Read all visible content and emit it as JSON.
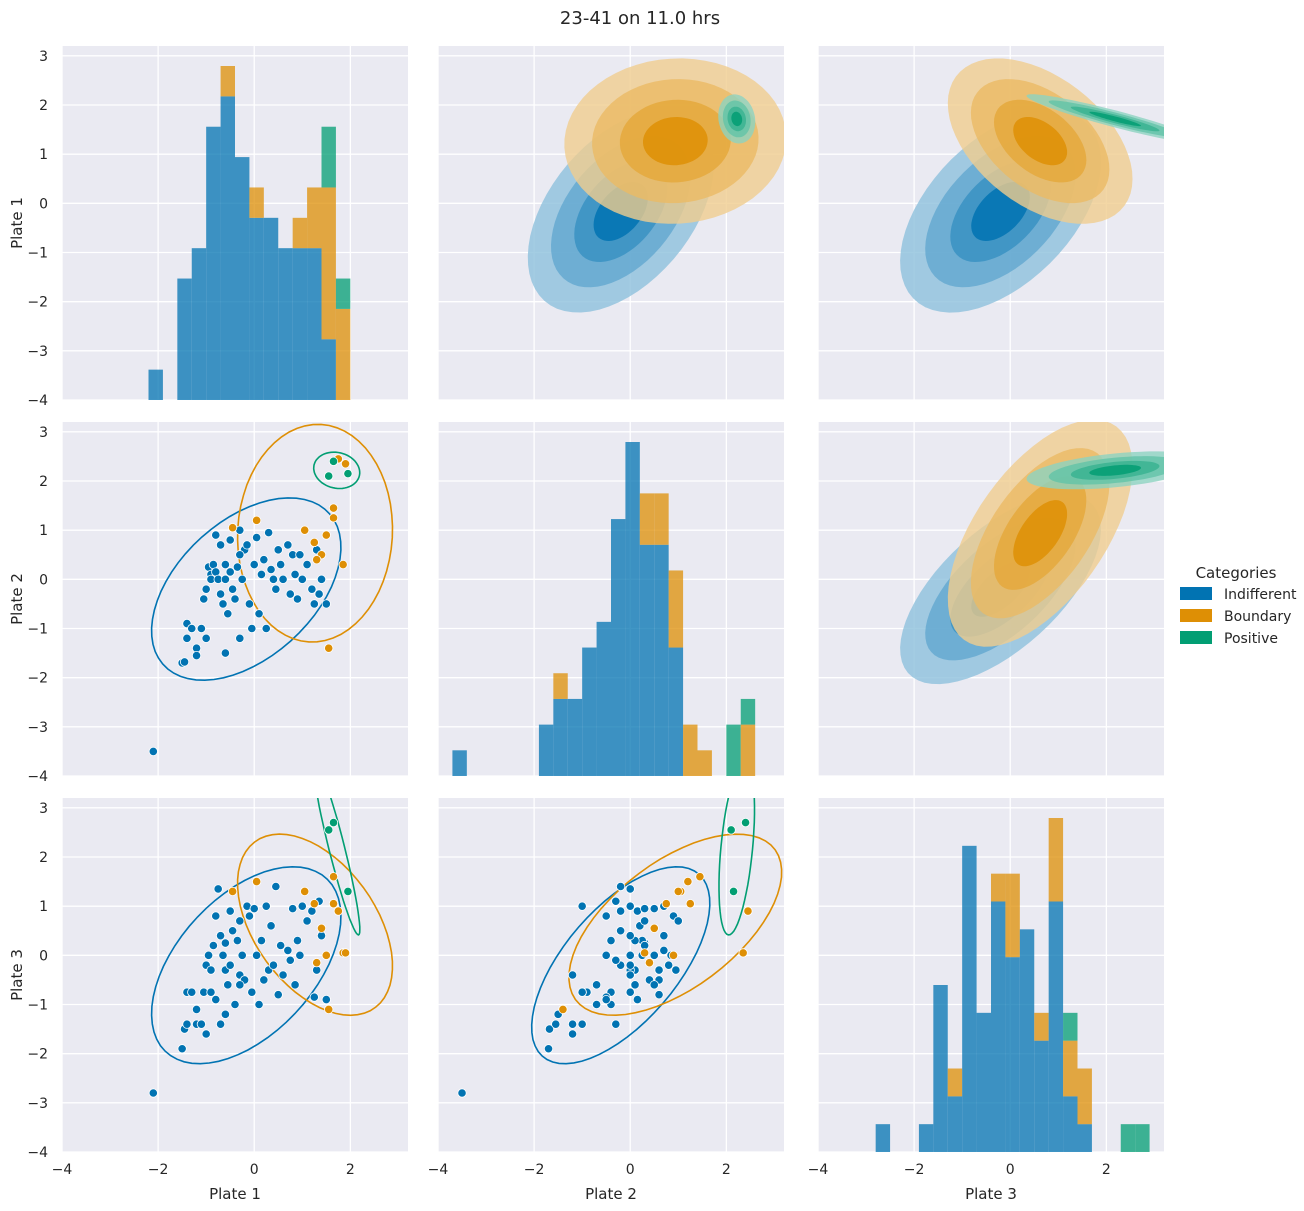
{
  "chart_data": {
    "type": "scatter",
    "title": "23-41 on 11.0 hrs",
    "variables": [
      "Plate 1",
      "Plate 2",
      "Plate 3"
    ],
    "axis_range": [
      -4,
      3.2
    ],
    "x_ticks": [
      -4,
      -2,
      0,
      2
    ],
    "y_ticks": [
      -4,
      -3,
      -2,
      -1,
      0,
      1,
      2,
      3
    ],
    "grid": true,
    "legend": {
      "title": "Categories",
      "placement": "right",
      "entries": [
        "Indifferent",
        "Boundary",
        "Positive"
      ]
    },
    "panels": {
      "diagonal": "histogram",
      "lower": "scatter with density contour",
      "upper": "filled density (kde)"
    },
    "colors": {
      "Indifferent": "#0173b2",
      "Boundary": "#de8f05",
      "Positive": "#029e73",
      "background": "#eaeaf2",
      "grid": "#ffffff"
    },
    "series": [
      {
        "name": "Indifferent",
        "points": [
          [
            -2.1,
            -3.5,
            -2.8
          ],
          [
            -1.5,
            -1.7,
            -1.9
          ],
          [
            -1.45,
            -1.68,
            -1.5
          ],
          [
            -1.4,
            -1.2,
            -1.4
          ],
          [
            -1.4,
            -0.9,
            -0.75
          ],
          [
            -1.3,
            -1.0,
            -0.75
          ],
          [
            -1.2,
            -1.4,
            -1.1
          ],
          [
            -1.2,
            -1.55,
            -1.4
          ],
          [
            -1.1,
            -1.0,
            -1.4
          ],
          [
            -1.05,
            -0.4,
            -0.75
          ],
          [
            -1.0,
            -1.2,
            -1.6
          ],
          [
            -1.0,
            -0.2,
            -0.2
          ],
          [
            -0.95,
            0.25,
            0.0
          ],
          [
            -0.9,
            0.1,
            -0.3
          ],
          [
            -0.9,
            0.0,
            -0.75
          ],
          [
            -0.85,
            0.3,
            0.2
          ],
          [
            -0.8,
            0.15,
            -0.9
          ],
          [
            -0.8,
            0.9,
            0.8
          ],
          [
            -0.75,
            0.0,
            1.35
          ],
          [
            -0.7,
            -0.3,
            -1.4
          ],
          [
            -0.7,
            0.7,
            0.4
          ],
          [
            -0.65,
            -0.5,
            0.0
          ],
          [
            -0.6,
            0.3,
            0.25
          ],
          [
            -0.6,
            0.0,
            -0.3
          ],
          [
            -0.55,
            -0.7,
            -0.6
          ],
          [
            -0.5,
            0.15,
            0.9
          ],
          [
            -0.5,
            0.8,
            -0.2
          ],
          [
            -0.45,
            -0.2,
            0.5
          ],
          [
            -0.4,
            -0.4,
            -1.0
          ],
          [
            -0.35,
            0.25,
            0.3
          ],
          [
            -0.3,
            1.0,
            0.7
          ],
          [
            -0.3,
            -1.2,
            -0.4
          ],
          [
            -0.25,
            0.0,
            0.0
          ],
          [
            -0.2,
            0.6,
            -0.5
          ],
          [
            -0.15,
            0.7,
            1.0
          ],
          [
            -0.1,
            -0.5,
            0.8
          ],
          [
            -0.05,
            -1.0,
            -0.75
          ],
          [
            0.0,
            0.3,
            0.95
          ],
          [
            0.05,
            0.85,
            0.0
          ],
          [
            0.1,
            -0.7,
            -1.0
          ],
          [
            0.15,
            0.1,
            0.3
          ],
          [
            0.2,
            0.4,
            -0.5
          ],
          [
            0.25,
            -1.0,
            1.0
          ],
          [
            0.3,
            0.95,
            -0.3
          ],
          [
            0.35,
            0.2,
            0.6
          ],
          [
            0.4,
            0.0,
            -0.2
          ],
          [
            0.45,
            -0.2,
            1.4
          ],
          [
            0.5,
            0.6,
            -0.8
          ],
          [
            0.55,
            0.3,
            0.2
          ],
          [
            0.6,
            0.0,
            -0.4
          ],
          [
            0.7,
            0.7,
            0.1
          ],
          [
            0.75,
            -0.3,
            -0.1
          ],
          [
            0.8,
            0.5,
            0.95
          ],
          [
            0.85,
            0.1,
            -0.6
          ],
          [
            0.9,
            -0.4,
            0.3
          ],
          [
            0.95,
            0.5,
            0.0
          ],
          [
            1.0,
            0.0,
            1.0
          ],
          [
            1.1,
            0.3,
            0.7
          ],
          [
            1.2,
            -0.2,
            0.9
          ],
          [
            1.25,
            -0.5,
            -0.85
          ],
          [
            1.3,
            0.6,
            -0.3
          ],
          [
            1.35,
            -0.3,
            1.1
          ],
          [
            1.4,
            0.0,
            0.4
          ],
          [
            1.5,
            -0.5,
            -0.9
          ],
          [
            -0.6,
            -1.5,
            -1.2
          ],
          [
            -0.3,
            0.5,
            -0.6
          ]
        ]
      },
      {
        "name": "Boundary",
        "points": [
          [
            -0.45,
            1.05,
            1.3
          ],
          [
            0.05,
            1.2,
            1.5
          ],
          [
            1.05,
            1.0,
            1.3
          ],
          [
            1.25,
            0.75,
            1.05
          ],
          [
            1.4,
            0.5,
            0.55
          ],
          [
            1.5,
            0.9,
            0.0
          ],
          [
            1.55,
            -1.4,
            -1.1
          ],
          [
            1.65,
            1.25,
            1.05
          ],
          [
            1.75,
            2.45,
            0.9
          ],
          [
            1.85,
            0.3,
            0.05
          ],
          [
            1.9,
            2.35,
            0.05
          ],
          [
            1.65,
            1.45,
            1.6
          ],
          [
            1.3,
            0.4,
            -0.15
          ]
        ]
      },
      {
        "name": "Positive",
        "points": [
          [
            1.55,
            2.1,
            2.55
          ],
          [
            1.65,
            2.4,
            2.7
          ],
          [
            1.95,
            2.15,
            1.3
          ]
        ]
      }
    ]
  }
}
